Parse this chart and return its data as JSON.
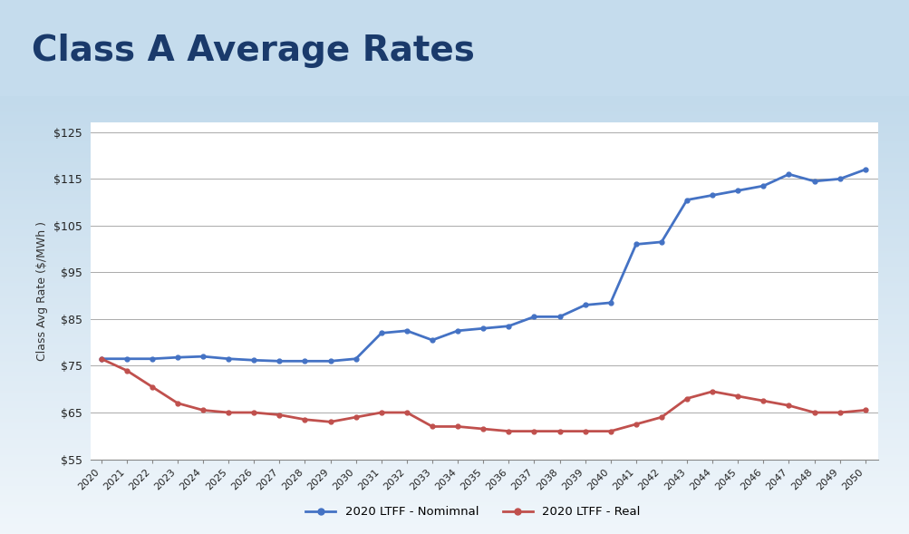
{
  "title": "Class A Average Rates",
  "title_color": "#1a3a6b",
  "ylabel": "Class Avg Rate ($/MWh )",
  "years": [
    2020,
    2021,
    2022,
    2023,
    2024,
    2025,
    2026,
    2027,
    2028,
    2029,
    2030,
    2031,
    2032,
    2033,
    2034,
    2035,
    2036,
    2037,
    2038,
    2039,
    2040,
    2041,
    2042,
    2043,
    2044,
    2045,
    2046,
    2047,
    2048,
    2049,
    2050
  ],
  "nominal": [
    76.5,
    76.5,
    76.5,
    76.8,
    77.0,
    76.5,
    76.2,
    76.0,
    76.0,
    76.0,
    76.5,
    82.0,
    82.5,
    80.5,
    82.5,
    83.0,
    83.5,
    85.5,
    85.5,
    88.0,
    88.5,
    101.0,
    101.5,
    110.5,
    111.5,
    112.5,
    113.5,
    116.0,
    114.5,
    115.0,
    117.0
  ],
  "real": [
    76.5,
    74.0,
    70.5,
    67.0,
    65.5,
    65.0,
    65.0,
    64.5,
    63.5,
    63.0,
    64.0,
    65.0,
    65.0,
    62.0,
    62.0,
    61.5,
    61.0,
    61.0,
    61.0,
    61.0,
    61.0,
    62.5,
    64.0,
    68.0,
    69.5,
    68.5,
    67.5,
    66.5,
    65.0,
    65.0,
    65.5
  ],
  "nominal_color": "#4472C4",
  "real_color": "#C0504D",
  "ylim": [
    55,
    127
  ],
  "yticks": [
    55,
    65,
    75,
    85,
    95,
    105,
    115,
    125
  ],
  "ytick_labels": [
    "$55",
    "$65",
    "$75",
    "$85",
    "$95",
    "$105",
    "$115",
    "$125"
  ],
  "legend_nominal": "2020 LTFF - Nomimnal",
  "legend_real": "2020 LTFF - Real",
  "line_width": 2.0,
  "marker": "o",
  "marker_size": 3.5,
  "grid_color": "#aaaaaa",
  "plot_bg": "#ffffff",
  "fig_bg_top": "#b8d4e8",
  "fig_bg_bottom": "#ddeaf5"
}
